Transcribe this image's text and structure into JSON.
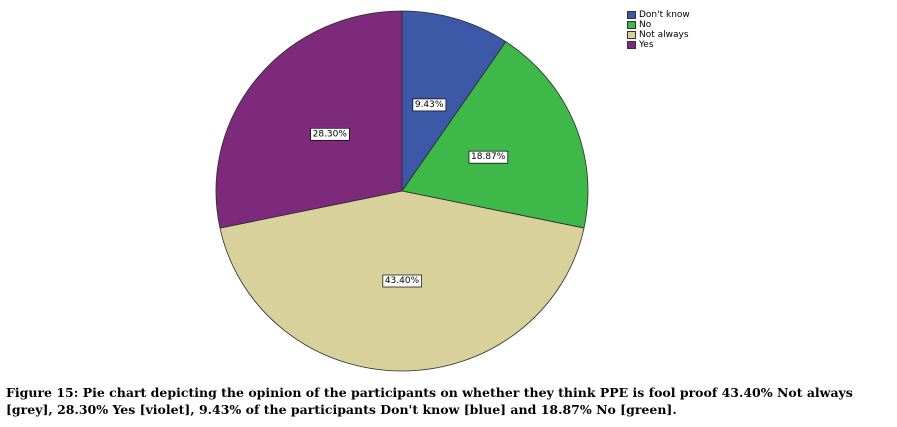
{
  "chart_data": {
    "type": "pie",
    "title": "",
    "categories": [
      "Don't know",
      "No",
      "Not always",
      "Yes"
    ],
    "values": [
      9.43,
      18.87,
      43.4,
      28.3
    ],
    "labels": [
      "9.43%",
      "18.87%",
      "43.40%",
      "28.30%"
    ],
    "colors": [
      "#3E58A8",
      "#3DB849",
      "#D8D19C",
      "#7E2A7C"
    ],
    "legend_position": "top-right",
    "start_angle_deg": 0,
    "direction": "clockwise"
  },
  "legend": {
    "items": [
      {
        "label": "Don't know",
        "color": "#3E58A8"
      },
      {
        "label": "No",
        "color": "#3DB849"
      },
      {
        "label": "Not always",
        "color": "#D8D19C"
      },
      {
        "label": "Yes",
        "color": "#7E2A7C"
      }
    ]
  },
  "caption": {
    "text": "Figure 15: Pie chart depicting the opinion of the participants on whether they think PPE is fool proof 43.40% Not always [grey], 28.30% Yes [violet], 9.43% of the participants Don't know [blue] and 18.87% No [green]."
  }
}
